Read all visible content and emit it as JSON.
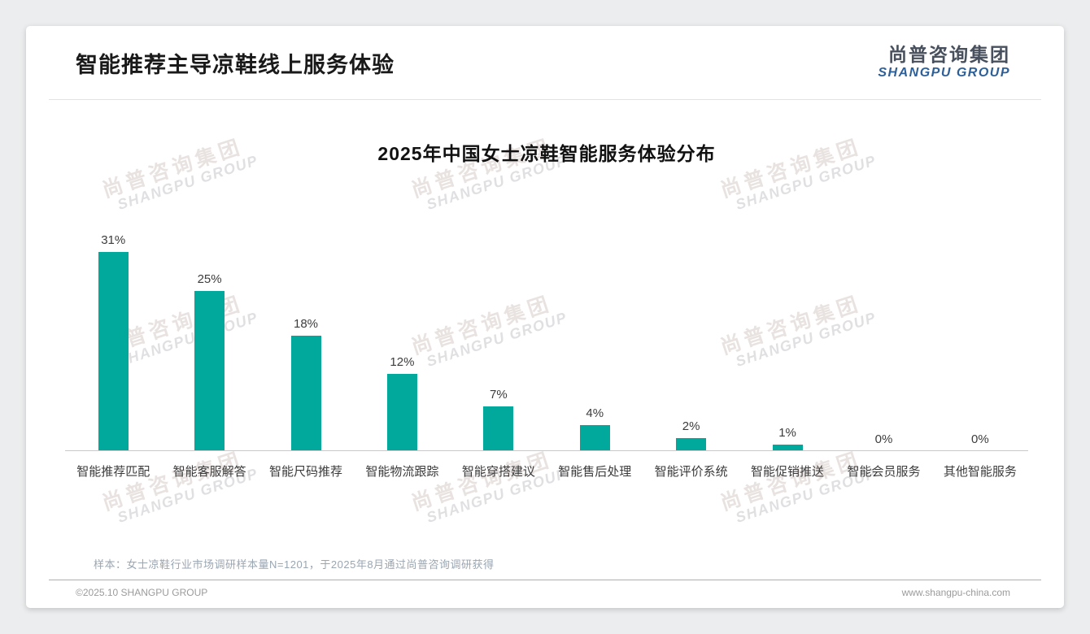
{
  "page": {
    "title": "智能推荐主导凉鞋线上服务体验",
    "logo": {
      "cn": "尚普咨询集团",
      "en": "SHANGPU GROUP"
    },
    "watermark": {
      "cn": "尚普咨询集团",
      "en": "SHANGPU GROUP"
    },
    "note": "样本：女士凉鞋行业市场调研样本量N=1201，于2025年8月通过尚普咨询调研获得",
    "footer": {
      "left": "©2025.10 SHANGPU GROUP",
      "right": "www.shangpu-china.com"
    }
  },
  "chart_data": {
    "type": "bar",
    "title": "2025年中国女士凉鞋智能服务体验分布",
    "categories": [
      "智能推荐匹配",
      "智能客服解答",
      "智能尺码推荐",
      "智能物流跟踪",
      "智能穿搭建议",
      "智能售后处理",
      "智能评价系统",
      "智能促销推送",
      "智能会员服务",
      "其他智能服务"
    ],
    "values": [
      31,
      25,
      18,
      12,
      7,
      4,
      2,
      1,
      0,
      0
    ],
    "data_labels": [
      "31%",
      "25%",
      "18%",
      "12%",
      "7%",
      "4%",
      "2%",
      "1%",
      "0%",
      "0%"
    ],
    "unit": "%",
    "xlabel": "",
    "ylabel": "",
    "ylim": [
      0,
      33
    ],
    "grid": false,
    "legend": "none",
    "bar_color": "#00A99C"
  }
}
